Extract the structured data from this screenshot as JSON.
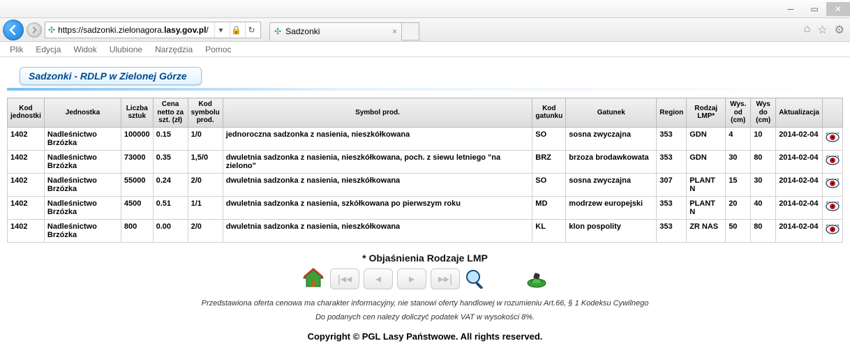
{
  "window": {
    "url_prefix": "https://sadzonki.zielonagora.",
    "url_bold": "lasy.gov.pl",
    "url_suffix": "/",
    "tab_title": "Sadzonki"
  },
  "menubar": [
    "Plik",
    "Edycja",
    "Widok",
    "Ulubione",
    "Narzędzia",
    "Pomoc"
  ],
  "page_title": "Sadzonki - RDLP w Zielonej Górze",
  "columns": [
    "Kod jednostki",
    "Jednostka",
    "Liczba sztuk",
    "Cena netto za szt. (zł)",
    "Kod symbolu prod.",
    "Symbol prod.",
    "Kod gatunku",
    "Gatunek",
    "Region",
    "Rodzaj LMP*",
    "Wys. od (cm)",
    "Wys do (cm)",
    "Aktualizacja",
    ""
  ],
  "col_widths": [
    "44px",
    "110px",
    "44px",
    "50px",
    "50px",
    "auto",
    "48px",
    "130px",
    "40px",
    "56px",
    "36px",
    "36px",
    "62px",
    "24px"
  ],
  "rows": [
    {
      "kod": "1402",
      "jednostka": "Nadleśnictwo Brzózka",
      "liczba": "100000",
      "cena": "0.15",
      "kodsym": "1/0",
      "symbol": "jednoroczna sadzonka z nasienia, nieszkółkowana",
      "kodgat": "SO",
      "gatunek": "sosna zwyczajna",
      "region": "353",
      "lmp": "GDN",
      "wysod": "4",
      "wysdo": "10",
      "akt": "2014-02-04"
    },
    {
      "kod": "1402",
      "jednostka": "Nadleśnictwo Brzózka",
      "liczba": "73000",
      "cena": "0.35",
      "kodsym": "1,5/0",
      "symbol": "dwuletnia sadzonka z nasienia, nieszkółkowana, poch. z siewu letniego \"na zielono\"",
      "kodgat": "BRZ",
      "gatunek": "brzoza brodawkowata",
      "region": "353",
      "lmp": "GDN",
      "wysod": "30",
      "wysdo": "80",
      "akt": "2014-02-04"
    },
    {
      "kod": "1402",
      "jednostka": "Nadleśnictwo Brzózka",
      "liczba": "55000",
      "cena": "0.24",
      "kodsym": "2/0",
      "symbol": "dwuletnia sadzonka z nasienia, nieszkółkowana",
      "kodgat": "SO",
      "gatunek": "sosna zwyczajna",
      "region": "307",
      "lmp": "PLANT N",
      "wysod": "15",
      "wysdo": "30",
      "akt": "2014-02-04"
    },
    {
      "kod": "1402",
      "jednostka": "Nadleśnictwo Brzózka",
      "liczba": "4500",
      "cena": "0.51",
      "kodsym": "1/1",
      "symbol": "dwuletnia sadzonka z nasienia, szkółkowana po pierwszym roku",
      "kodgat": "MD",
      "gatunek": "modrzew europejski",
      "region": "353",
      "lmp": "PLANT N",
      "wysod": "20",
      "wysdo": "40",
      "akt": "2014-02-04"
    },
    {
      "kod": "1402",
      "jednostka": "Nadleśnictwo Brzózka",
      "liczba": "800",
      "cena": "0.00",
      "kodsym": "2/0",
      "symbol": "dwuletnia sadzonka z nasienia, nieszkółkowana",
      "kodgat": "KL",
      "gatunek": "klon pospolity",
      "region": "353",
      "lmp": "ZR NAS",
      "wysod": "50",
      "wysdo": "80",
      "akt": "2014-02-04"
    }
  ],
  "explain": "* Objaśnienia Rodzaje LMP",
  "disclaimer1": "Przedstawiona oferta cenowa ma charakter informacyjny, nie stanowi oferty handlowej w rozumieniu Art.66, § 1 Kodeksu Cywilnego",
  "disclaimer2": "Do podanych cen należy doliczyć podatek VAT w wysokości 8%.",
  "copyright": "Copyright © PGL Lasy Państwowe. All rights reserved.",
  "colors": {
    "eye": "#d41a1a",
    "eye_stroke": "#17305a"
  }
}
